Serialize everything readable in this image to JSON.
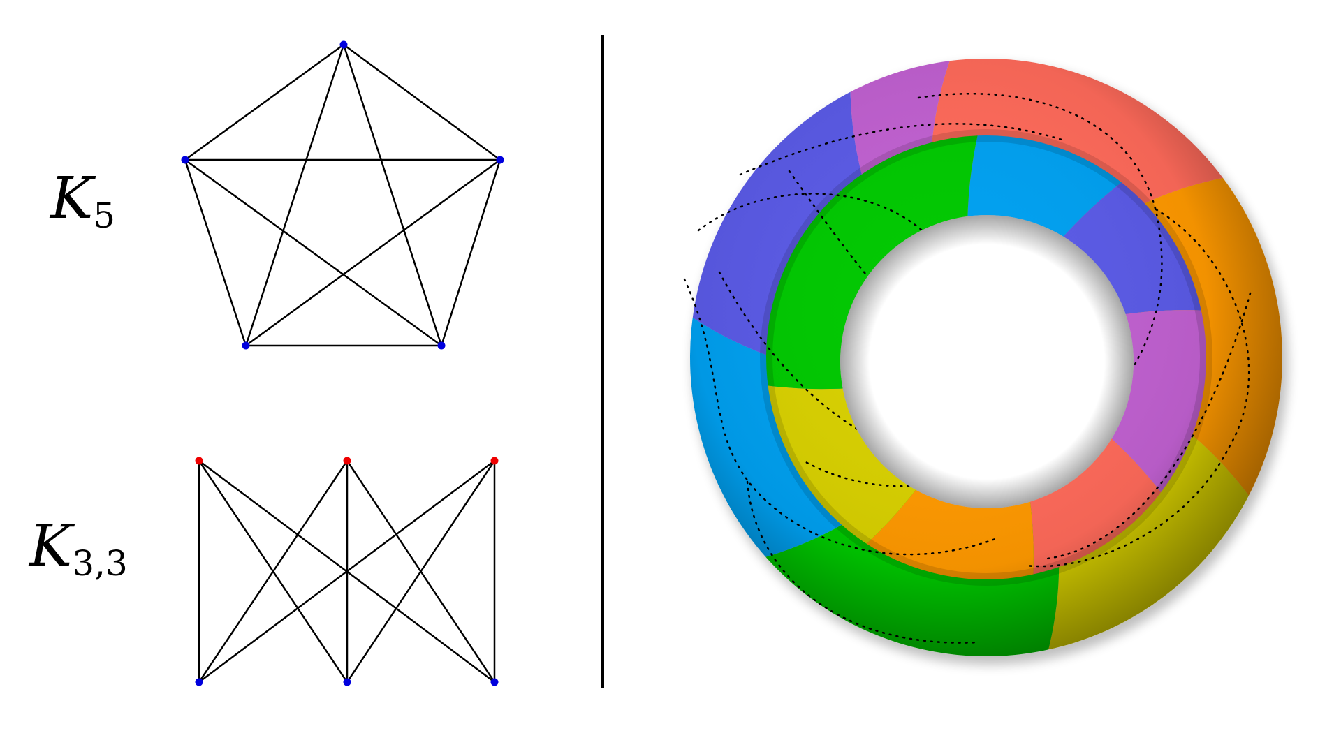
{
  "graphs": {
    "k5": {
      "label_main": "K",
      "label_sub": "5",
      "vertex_color": "#0000dd",
      "edge_color": "#000000"
    },
    "k33": {
      "label_main": "K",
      "label_sub": "3,3",
      "top_vertex_color": "#ee0000",
      "bottom_vertex_color": "#0000dd",
      "edge_color": "#000000"
    }
  },
  "divider_color": "#000000",
  "torus": {
    "region_colors": [
      "#ff6a5a",
      "#ff9900",
      "#d8d000",
      "#00c800",
      "#00a0f0",
      "#5a5ae6",
      "#c060d0"
    ],
    "boundary_style": "dotted"
  }
}
